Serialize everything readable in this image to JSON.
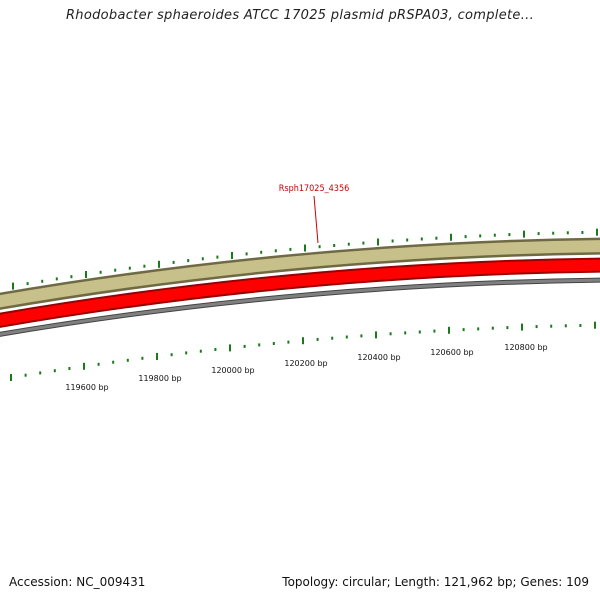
{
  "title": "Rhodobacter sphaeroides ATCC 17025 plasmid pRSPA03, complete...",
  "gene_label": {
    "text": "Rsph17025_4356",
    "color": "#cc0000"
  },
  "ticks": [
    {
      "bp": "119600 bp"
    },
    {
      "bp": "119800 bp"
    },
    {
      "bp": "120000 bp"
    },
    {
      "bp": "120200 bp"
    },
    {
      "bp": "120400 bp"
    },
    {
      "bp": "120600 bp"
    },
    {
      "bp": "120800 bp"
    }
  ],
  "tracks": {
    "feature_band_color": "#c8c08a",
    "gene_band_color": "#ff0000",
    "backbone_color": "#808080",
    "tick_color": "#1a7a1a"
  },
  "footer": {
    "accession": "Accession: NC_009431",
    "summary": "Topology: circular; Length: 121,962 bp; Genes: 109"
  }
}
